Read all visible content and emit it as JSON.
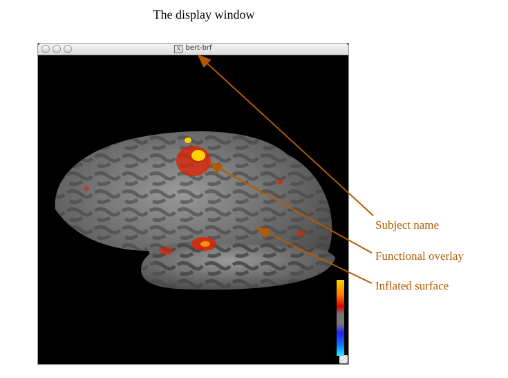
{
  "caption": "The display window",
  "window": {
    "title": "bert-brf",
    "title_icon": "x11-icon"
  },
  "colorbar": {
    "colors": [
      "#f5d300",
      "#ff7a00",
      "#e00000",
      "#777777",
      "#2020ff",
      "#20f0ff"
    ]
  },
  "annotations": [
    {
      "label": "Subject name"
    },
    {
      "label": "Functional overlay"
    },
    {
      "label": "Inflated surface"
    }
  ],
  "annotation_color": "#b35a00"
}
